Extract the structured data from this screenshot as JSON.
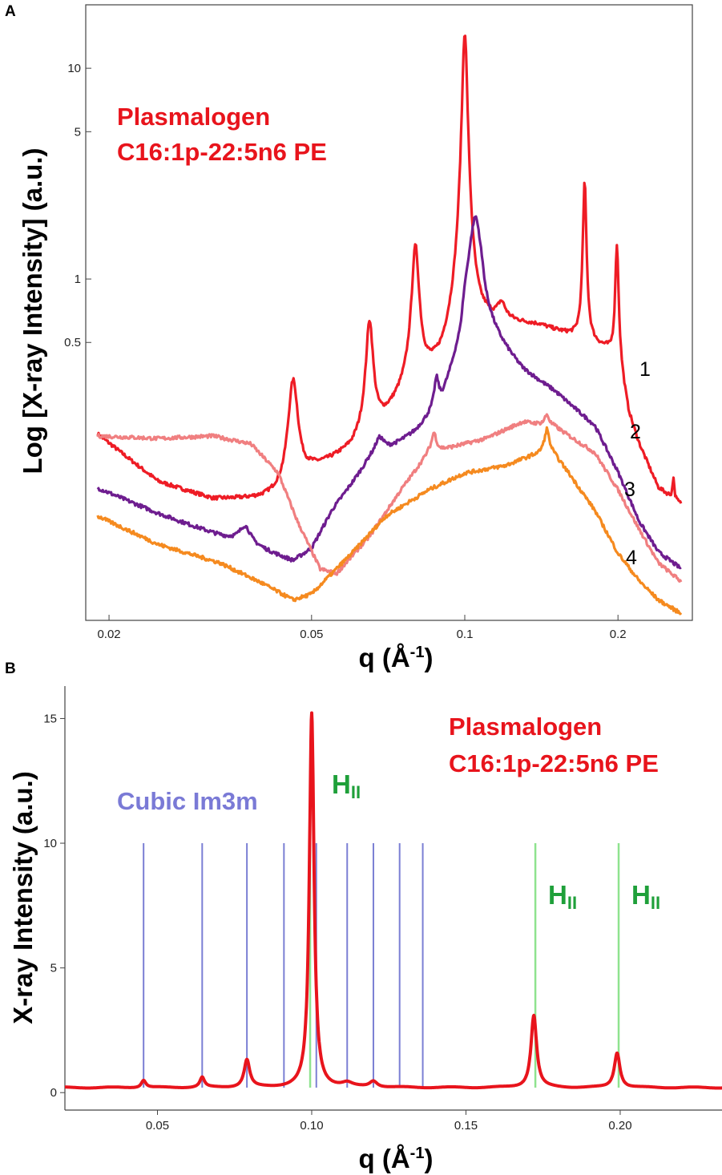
{
  "panels": [
    {
      "letter": "A",
      "annotation": {
        "line1": "Plasmalogen",
        "line2": "C16:1p-22:5n6 PE",
        "color": "#e8141c"
      },
      "chart_data": {
        "type": "line",
        "x_scale": "log",
        "y_scale": "log",
        "xlabel": "q (Å",
        "xlabel_sup": "-1",
        "xlabel_end": ")",
        "ylabel": "Log [X-ray Intensity] (a.u.)",
        "xlim": [
          0.018,
          0.28
        ],
        "ylim": [
          0.024,
          20
        ],
        "x_ticks": [
          0.02,
          0.05,
          0.1,
          0.2
        ],
        "x_tick_labels": [
          "0.02",
          "0.05",
          "0.1",
          "0.2"
        ],
        "y_ticks": [
          0.5,
          1,
          5,
          10
        ],
        "y_tick_labels": [
          "0.5",
          "1",
          "5",
          "10"
        ],
        "grid": false,
        "series": [
          {
            "label": "1",
            "color": "#ee1c25",
            "baseline": [
              [
                0.019,
                0.18
              ],
              [
                0.025,
                0.105
              ],
              [
                0.032,
                0.085
              ],
              [
                0.04,
                0.083
              ],
              [
                0.044,
                0.085
              ],
              [
                0.05,
                0.115
              ],
              [
                0.06,
                0.14
              ],
              [
                0.07,
                0.2
              ],
              [
                0.08,
                0.3
              ],
              [
                0.09,
                0.34
              ],
              [
                0.1,
                0.52
              ],
              [
                0.11,
                0.6
              ],
              [
                0.12,
                0.62
              ],
              [
                0.14,
                0.6
              ],
              [
                0.16,
                0.54
              ],
              [
                0.19,
                0.46
              ],
              [
                0.2,
                0.4
              ],
              [
                0.21,
                0.22
              ],
              [
                0.22,
                0.16
              ],
              [
                0.24,
                0.1
              ],
              [
                0.265,
                0.085
              ]
            ],
            "peaks": [
              {
                "x": 0.046,
                "h": 0.23,
                "w": 0.022
              },
              {
                "x": 0.065,
                "h": 0.45,
                "w": 0.016
              },
              {
                "x": 0.08,
                "h": 1.1,
                "w": 0.016
              },
              {
                "x": 0.1,
                "h": 14.3,
                "w": 0.011
              },
              {
                "x": 0.118,
                "h": 0.12,
                "w": 0.02
              },
              {
                "x": 0.172,
                "h": 2.4,
                "w": 0.007
              },
              {
                "x": 0.199,
                "h": 1.05,
                "w": 0.007
              },
              {
                "x": 0.257,
                "h": 0.025,
                "w": 0.004
              }
            ]
          },
          {
            "label": "2",
            "color": "#6e1d8f",
            "baseline": [
              [
                0.019,
                0.1
              ],
              [
                0.025,
                0.075
              ],
              [
                0.033,
                0.058
              ],
              [
                0.04,
                0.049
              ],
              [
                0.046,
                0.042
              ],
              [
                0.05,
                0.048
              ],
              [
                0.055,
                0.075
              ],
              [
                0.065,
                0.13
              ],
              [
                0.08,
                0.17
              ],
              [
                0.09,
                0.22
              ],
              [
                0.098,
                0.38
              ],
              [
                0.1,
                0.6
              ],
              [
                0.105,
                1.0
              ],
              [
                0.11,
                0.55
              ],
              [
                0.13,
                0.36
              ],
              [
                0.15,
                0.29
              ],
              [
                0.18,
                0.2
              ],
              [
                0.2,
                0.12
              ],
              [
                0.22,
                0.07
              ],
              [
                0.24,
                0.05
              ],
              [
                0.265,
                0.042
              ]
            ],
            "peaks": [
              {
                "x": 0.037,
                "h": 0.012,
                "w": 0.03
              },
              {
                "x": 0.068,
                "h": 0.03,
                "w": 0.025
              },
              {
                "x": 0.088,
                "h": 0.09,
                "w": 0.012
              },
              {
                "x": 0.105,
                "h": 1.0,
                "w": 0.035
              }
            ]
          },
          {
            "label": "3",
            "color": "#f07f80",
            "baseline": [
              [
                0.019,
                0.18
              ],
              [
                0.025,
                0.175
              ],
              [
                0.032,
                0.18
              ],
              [
                0.038,
                0.165
              ],
              [
                0.043,
                0.12
              ],
              [
                0.047,
                0.07
              ],
              [
                0.052,
                0.042
              ],
              [
                0.056,
                0.04
              ],
              [
                0.065,
                0.06
              ],
              [
                0.075,
                0.1
              ],
              [
                0.085,
                0.15
              ],
              [
                0.095,
                0.16
              ],
              [
                0.11,
                0.175
              ],
              [
                0.13,
                0.21
              ],
              [
                0.15,
                0.2
              ],
              [
                0.18,
                0.15
              ],
              [
                0.2,
                0.1
              ],
              [
                0.22,
                0.065
              ],
              [
                0.24,
                0.045
              ],
              [
                0.265,
                0.037
              ]
            ],
            "peaks": [
              {
                "x": 0.087,
                "h": 0.035,
                "w": 0.012
              },
              {
                "x": 0.145,
                "h": 0.025,
                "w": 0.012
              }
            ]
          },
          {
            "label": "4",
            "color": "#f58a1f",
            "baseline": [
              [
                0.019,
                0.075
              ],
              [
                0.025,
                0.055
              ],
              [
                0.033,
                0.045
              ],
              [
                0.04,
                0.036
              ],
              [
                0.046,
                0.03
              ],
              [
                0.05,
                0.032
              ],
              [
                0.06,
                0.05
              ],
              [
                0.07,
                0.075
              ],
              [
                0.085,
                0.1
              ],
              [
                0.1,
                0.12
              ],
              [
                0.12,
                0.13
              ],
              [
                0.14,
                0.15
              ],
              [
                0.145,
                0.165
              ],
              [
                0.16,
                0.12
              ],
              [
                0.18,
                0.08
              ],
              [
                0.2,
                0.05
              ],
              [
                0.22,
                0.037
              ],
              [
                0.24,
                0.03
              ],
              [
                0.265,
                0.026
              ]
            ],
            "peaks": [
              {
                "x": 0.145,
                "h": 0.03,
                "w": 0.01
              }
            ]
          }
        ]
      }
    },
    {
      "letter": "B",
      "annotation": {
        "line1": "Plasmalogen",
        "line2": "C16:1p-22:5n6 PE",
        "color": "#e8141c"
      },
      "cubic_label": {
        "text": "Cubic Im3m",
        "color": "#7a7ad6"
      },
      "hii_labels": [
        {
          "main": "H",
          "sub": "II",
          "color": "#1fa03a",
          "x": 0.101
        },
        {
          "main": "H",
          "sub": "II",
          "color": "#1fa03a",
          "x": 0.174
        },
        {
          "main": "H",
          "sub": "II",
          "color": "#1fa03a",
          "x": 0.202
        }
      ],
      "chart_data": {
        "type": "line",
        "xlabel": "q (Å",
        "xlabel_sup": "-1",
        "xlabel_end": ")",
        "ylabel": "X-ray Intensity (a.u.)",
        "xlim": [
          0.02,
          0.233
        ],
        "ylim": [
          -0.7,
          16.3
        ],
        "x_ticks": [
          0.05,
          0.1,
          0.15,
          0.2
        ],
        "x_tick_labels": [
          "0.05",
          "0.10",
          "0.15",
          "0.20"
        ],
        "y_ticks": [
          0,
          5,
          10,
          15
        ],
        "y_tick_labels": [
          "0",
          "5",
          "10",
          "15"
        ],
        "grid": false,
        "series": [
          {
            "color": "#e8141c",
            "baseline": 0.2,
            "peaks": [
              {
                "x": 0.0455,
                "h": 0.3,
                "w": 0.0009
              },
              {
                "x": 0.0645,
                "h": 0.4,
                "w": 0.0009
              },
              {
                "x": 0.079,
                "h": 1.1,
                "w": 0.0011
              },
              {
                "x": 0.1,
                "h": 15.0,
                "w": 0.0009
              },
              {
                "x": 0.1115,
                "h": 0.15,
                "w": 0.002
              },
              {
                "x": 0.12,
                "h": 0.25,
                "w": 0.0015
              },
              {
                "x": 0.172,
                "h": 2.9,
                "w": 0.0011
              },
              {
                "x": 0.199,
                "h": 1.4,
                "w": 0.0011
              }
            ]
          }
        ],
        "cubic_lines": {
          "x": [
            0.0455,
            0.0645,
            0.079,
            0.091,
            0.1015,
            0.1115,
            0.12,
            0.1285,
            0.136
          ],
          "y_top": 10,
          "color": "#7b7fd4"
        },
        "hii_lines": {
          "x": [
            0.0995,
            0.1725,
            0.1995
          ],
          "y_top": 10,
          "color": "#8fe38f"
        }
      }
    }
  ]
}
